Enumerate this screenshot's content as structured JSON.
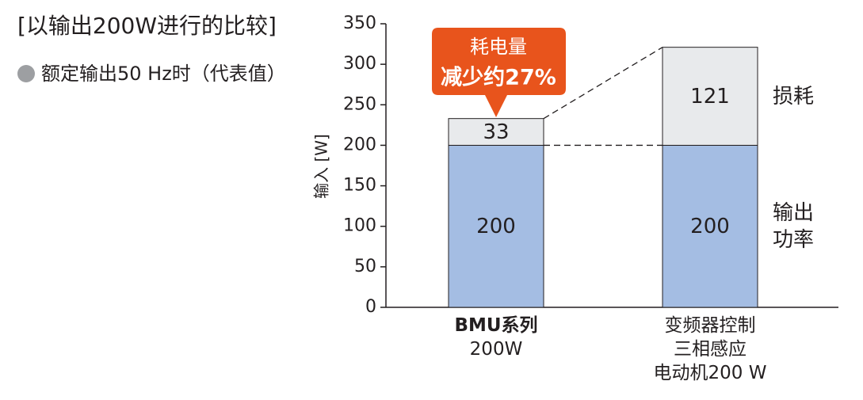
{
  "chart_data": {
    "type": "stacked-bar",
    "title": "[以输出200W进行的比较]",
    "subtitle": "额定输出50 Hz时（代表值）",
    "y_label": "输入 [W]",
    "annotation": [
      "耗电量",
      "减少约27%"
    ],
    "categories": [
      [
        "BMU系列",
        "200W"
      ],
      [
        "变频器控制",
        "三相感应",
        "电动机200 W"
      ]
    ],
    "series": [
      {
        "name": "输出功率",
        "color": "#a4bde3",
        "values": [
          200,
          200
        ]
      },
      {
        "name": "损耗",
        "color": "#e8eaec",
        "values": [
          33,
          121
        ]
      }
    ],
    "ylim": [
      0,
      350
    ],
    "yticks": [
      0,
      50,
      100,
      150,
      200,
      250,
      300,
      350
    ]
  }
}
